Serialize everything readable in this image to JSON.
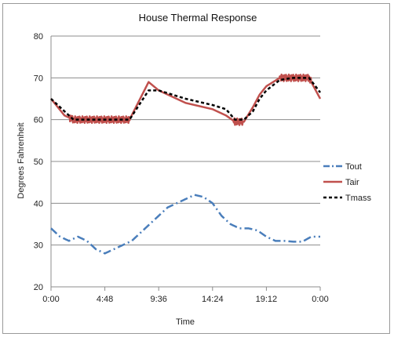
{
  "chart_data": {
    "type": "line",
    "title": "House Thermal Response",
    "xlabel": "Time",
    "ylabel": "Degrees Fahrenheit",
    "x_tick_labels": [
      "0:00",
      "4:48",
      "9:36",
      "14:24",
      "19:12",
      "0:00"
    ],
    "x_tick_hours": [
      0,
      4.8,
      9.6,
      14.4,
      19.2,
      24
    ],
    "xlim_hours": [
      0,
      24
    ],
    "ylim": [
      20,
      80
    ],
    "y_ticks": [
      20,
      30,
      40,
      50,
      60,
      70,
      80
    ],
    "grid": "horizontal",
    "legend_position": "right",
    "series": [
      {
        "name": "Tout",
        "color": "#4a7ebb",
        "style": "dash-dot",
        "x_hours": [
          0,
          0.8,
          1.6,
          2.4,
          3.2,
          4.0,
          4.8,
          5.6,
          6.4,
          7.2,
          8.0,
          8.8,
          9.6,
          10.4,
          11.2,
          12.0,
          12.8,
          13.6,
          14.4,
          15.2,
          16.0,
          16.8,
          17.6,
          18.4,
          19.2,
          20.0,
          20.8,
          21.6,
          22.4,
          23.2,
          24.0
        ],
        "values": [
          34,
          32,
          31,
          32,
          31,
          29,
          28,
          29,
          30,
          31,
          33,
          35,
          37,
          39,
          40,
          41,
          42,
          41.5,
          40,
          37,
          35,
          34,
          34,
          33.5,
          32,
          31,
          31,
          30.8,
          30.8,
          32,
          32
        ]
      },
      {
        "name": "Tair",
        "color": "#c0504d",
        "style": "solid-oscillating",
        "x_hours": [
          0,
          1.2,
          2.0,
          7.0,
          8.7,
          9.6,
          12.0,
          14.4,
          15.6,
          16.4,
          17.2,
          18.0,
          18.6,
          19.2,
          20.4,
          21.6,
          23.0,
          24.0
        ],
        "values": [
          65,
          61,
          60,
          60,
          69,
          67,
          64,
          62.5,
          61,
          59.5,
          59.5,
          63,
          66,
          68,
          70,
          70,
          70,
          65
        ]
      },
      {
        "name": "Tmass",
        "color": "#000000",
        "style": "dashed",
        "x_hours": [
          0,
          1.2,
          2.0,
          7.0,
          8.7,
          9.6,
          12.0,
          14.4,
          15.6,
          16.4,
          17.2,
          18.0,
          18.6,
          19.2,
          20.4,
          21.6,
          23.0,
          24.0
        ],
        "values": [
          65,
          62,
          60,
          60,
          67,
          67,
          65,
          63.5,
          62.5,
          60,
          60,
          62,
          65,
          67,
          69.5,
          70,
          70,
          66.5
        ]
      }
    ],
    "oscillation_segments_hours": [
      [
        1.6,
        7.0
      ],
      [
        16.3,
        17.1
      ],
      [
        20.4,
        23.2
      ]
    ]
  }
}
